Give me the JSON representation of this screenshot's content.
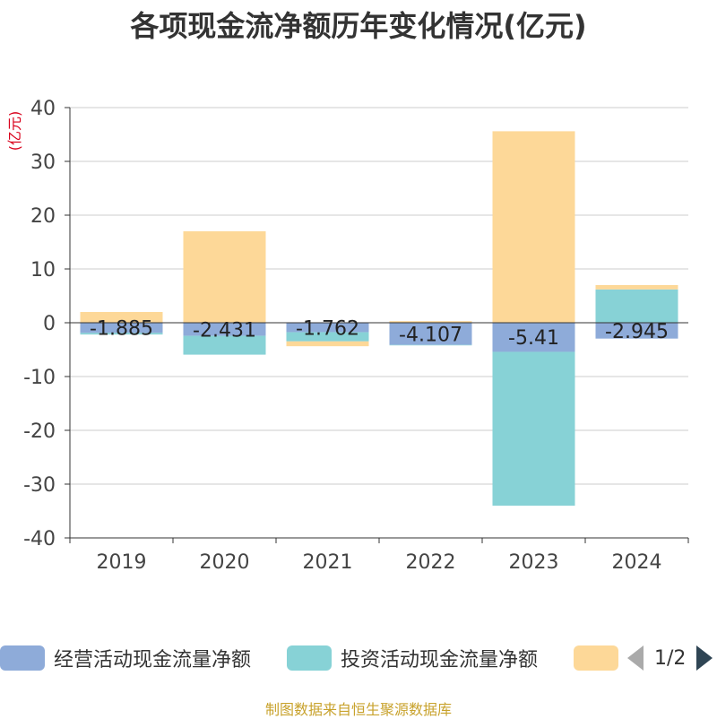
{
  "title": "各项现金流净额历年变化情况(亿元)",
  "source": "制图数据来自恒生聚源数据库",
  "colors": {
    "operating": "#8eabd9",
    "investing": "#87d2d6",
    "financing": "#fdd898",
    "grid": "#cccccc",
    "axis": "#333333",
    "ylabel": "#d9001b"
  },
  "legend": {
    "items": [
      {
        "label": "经营活动现金流量净额"
      },
      {
        "label": "投资活动现金流量净额"
      },
      {
        "label": ""
      }
    ],
    "pager": "1/2"
  },
  "chart_data": {
    "type": "bar",
    "stacked": true,
    "title": "各项现金流净额历年变化情况(亿元)",
    "ylabel": "(亿元)",
    "xlabel": "",
    "ylim": [
      -40,
      40
    ],
    "yticks": [
      40,
      30,
      20,
      10,
      0,
      -10,
      -20,
      -30,
      -40
    ],
    "grid": true,
    "legend_position": "bottom",
    "categories": [
      "2019",
      "2020",
      "2021",
      "2022",
      "2023",
      "2024"
    ],
    "series": [
      {
        "name": "经营活动现金流量净额",
        "values": [
          -1.885,
          -2.431,
          -1.762,
          -4.107,
          -5.41,
          -2.945
        ],
        "labels": [
          "-1.885",
          "-2.431",
          "-1.762",
          "-4.107",
          "-5.41",
          "-2.945"
        ]
      },
      {
        "name": "投资活动现金流量净额",
        "values": [
          -0.3,
          -3.5,
          -1.7,
          -0.1,
          -28.6,
          6.2
        ]
      },
      {
        "name": "",
        "values": [
          2.0,
          17.0,
          -0.9,
          0.3,
          35.6,
          0.8
        ]
      }
    ]
  }
}
